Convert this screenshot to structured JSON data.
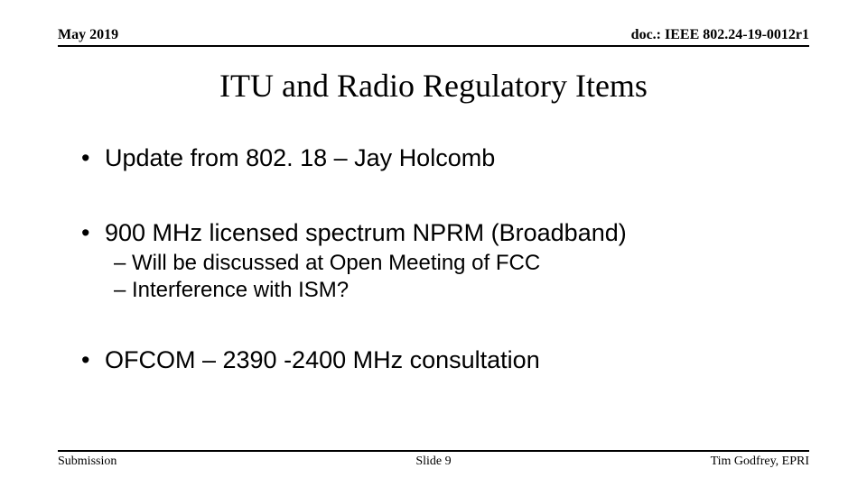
{
  "header": {
    "date": "May 2019",
    "doc": "doc.: IEEE 802.24-19-0012r1"
  },
  "title": "ITU and Radio Regulatory Items",
  "bullets": {
    "b1": "Update from 802. 18 – Jay Holcomb",
    "b2": "900 MHz licensed spectrum NPRM (Broadband)",
    "b2a": "Will be discussed at Open Meeting of FCC",
    "b2b": "Interference with ISM?",
    "b3": "OFCOM – 2390 -2400 MHz consultation"
  },
  "footer": {
    "left": "Submission",
    "center": "Slide 9",
    "right": "Tim Godfrey, EPRI"
  }
}
